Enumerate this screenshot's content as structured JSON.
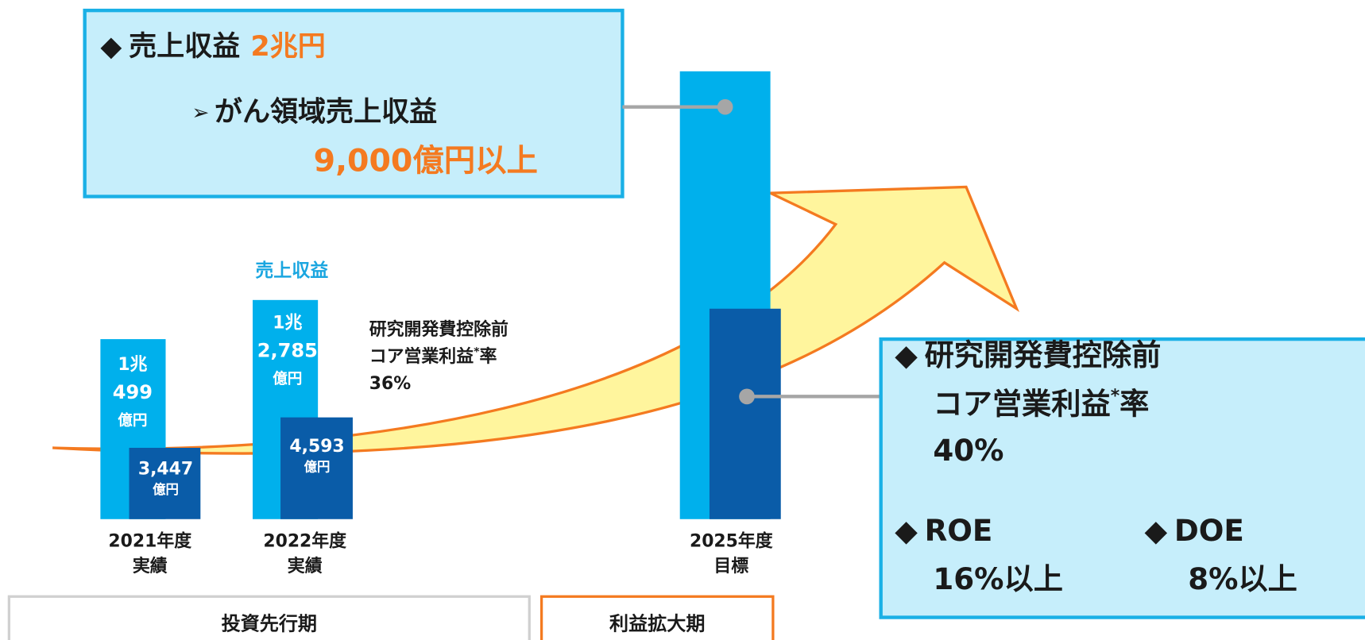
{
  "top_box": {
    "line1_marker": "◆",
    "line1_text": "売上収益",
    "line1_value": "2兆円",
    "line2_marker": "➢",
    "line2_text": "がん領域売上収益",
    "line2_value": "9,000億円以上"
  },
  "revenue_label": "売上収益",
  "bars": [
    {
      "revenue_lines": [
        "1兆",
        "499",
        "億円"
      ],
      "profit_lines": [
        "3,447",
        "億円"
      ],
      "year": "2021年度",
      "status": "実績"
    },
    {
      "revenue_lines": [
        "1兆",
        "2,785",
        "億円"
      ],
      "profit_lines": [
        "4,593",
        "億円"
      ],
      "year": "2022年度",
      "status": "実績"
    },
    {
      "year": "2025年度",
      "status": "目標"
    }
  ],
  "note_2022": {
    "line1": "研究開発費控除前",
    "line2": "コア営業利益",
    "star": "*",
    "line2_end": "率",
    "line3": "36%"
  },
  "right_box": {
    "marker": "◆",
    "line1": "研究開発費控除前",
    "line2": "コア営業利益",
    "star": "*",
    "line2_end": "率",
    "line3": "40%",
    "roe_marker": "◆",
    "roe_label": "ROE",
    "roe_value": "16%以上",
    "doe_marker": "◆",
    "doe_label": "DOE",
    "doe_value": "8%以上"
  },
  "phases": {
    "invest": "投資先行期",
    "profit": "利益拡大期"
  }
}
